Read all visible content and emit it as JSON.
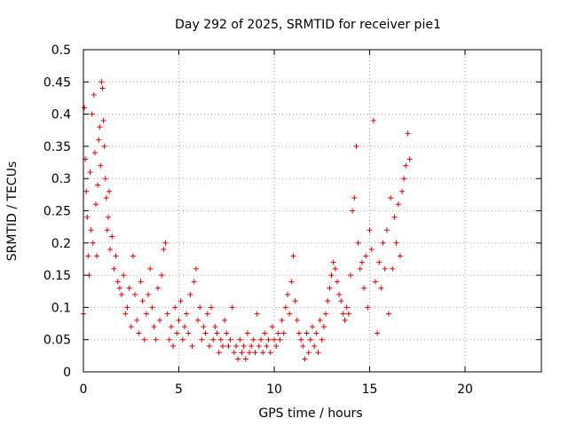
{
  "chart_data": {
    "type": "scatter",
    "title": "Day 292 of 2025, SRMTID for receiver pie1",
    "xlabel": "GPS time / hours",
    "ylabel": "SRMTID / TECUs",
    "xlim": [
      0,
      24
    ],
    "ylim": [
      0,
      0.5
    ],
    "x_ticks": [
      0,
      5,
      10,
      15,
      20
    ],
    "y_ticks": [
      0,
      0.05,
      0.1,
      0.15,
      0.2,
      0.25,
      0.3,
      0.35,
      0.4,
      0.45,
      0.5
    ],
    "x_tick_labels": [
      "0",
      "5",
      "10",
      "15",
      "20"
    ],
    "y_tick_labels": [
      "0",
      "0.05",
      "0.1",
      "0.15",
      "0.2",
      "0.25",
      "0.3",
      "0.35",
      "0.4",
      "0.45",
      "0.5"
    ],
    "grid": true,
    "marker": "+",
    "color": "#e00000",
    "series": [
      {
        "name": "SRMTID",
        "points": [
          [
            0.0,
            0.09
          ],
          [
            0.05,
            0.41
          ],
          [
            0.1,
            0.33
          ],
          [
            0.15,
            0.28
          ],
          [
            0.2,
            0.24
          ],
          [
            0.25,
            0.18
          ],
          [
            0.3,
            0.15
          ],
          [
            0.35,
            0.31
          ],
          [
            0.4,
            0.22
          ],
          [
            0.45,
            0.4
          ],
          [
            0.5,
            0.2
          ],
          [
            0.55,
            0.43
          ],
          [
            0.6,
            0.34
          ],
          [
            0.65,
            0.26
          ],
          [
            0.7,
            0.18
          ],
          [
            0.75,
            0.29
          ],
          [
            0.8,
            0.36
          ],
          [
            0.85,
            0.38
          ],
          [
            0.9,
            0.32
          ],
          [
            0.95,
            0.45
          ],
          [
            1.0,
            0.44
          ],
          [
            1.05,
            0.39
          ],
          [
            1.1,
            0.35
          ],
          [
            1.15,
            0.3
          ],
          [
            1.2,
            0.27
          ],
          [
            1.25,
            0.22
          ],
          [
            1.3,
            0.24
          ],
          [
            1.35,
            0.28
          ],
          [
            1.4,
            0.19
          ],
          [
            1.5,
            0.21
          ],
          [
            1.6,
            0.16
          ],
          [
            1.7,
            0.18
          ],
          [
            1.8,
            0.14
          ],
          [
            1.9,
            0.13
          ],
          [
            2.0,
            0.12
          ],
          [
            2.1,
            0.15
          ],
          [
            2.2,
            0.09
          ],
          [
            2.3,
            0.1
          ],
          [
            2.4,
            0.13
          ],
          [
            2.5,
            0.07
          ],
          [
            2.6,
            0.18
          ],
          [
            2.7,
            0.12
          ],
          [
            2.8,
            0.08
          ],
          [
            2.9,
            0.06
          ],
          [
            3.0,
            0.14
          ],
          [
            3.1,
            0.11
          ],
          [
            3.2,
            0.05
          ],
          [
            3.3,
            0.09
          ],
          [
            3.4,
            0.12
          ],
          [
            3.5,
            0.16
          ],
          [
            3.6,
            0.1
          ],
          [
            3.7,
            0.07
          ],
          [
            3.8,
            0.05
          ],
          [
            3.9,
            0.13
          ],
          [
            4.0,
            0.08
          ],
          [
            4.1,
            0.15
          ],
          [
            4.2,
            0.19
          ],
          [
            4.3,
            0.2
          ],
          [
            4.4,
            0.09
          ],
          [
            4.5,
            0.05
          ],
          [
            4.6,
            0.07
          ],
          [
            4.7,
            0.04
          ],
          [
            4.8,
            0.1
          ],
          [
            4.9,
            0.06
          ],
          [
            5.0,
            0.08
          ],
          [
            5.1,
            0.11
          ],
          [
            5.2,
            0.05
          ],
          [
            5.3,
            0.07
          ],
          [
            5.4,
            0.09
          ],
          [
            5.5,
            0.06
          ],
          [
            5.6,
            0.12
          ],
          [
            5.7,
            0.04
          ],
          [
            5.8,
            0.14
          ],
          [
            5.9,
            0.16
          ],
          [
            6.0,
            0.08
          ],
          [
            6.1,
            0.1
          ],
          [
            6.2,
            0.05
          ],
          [
            6.3,
            0.07
          ],
          [
            6.4,
            0.06
          ],
          [
            6.5,
            0.09
          ],
          [
            6.6,
            0.04
          ],
          [
            6.7,
            0.1
          ],
          [
            6.8,
            0.05
          ],
          [
            6.9,
            0.07
          ],
          [
            7.0,
            0.06
          ],
          [
            7.1,
            0.03
          ],
          [
            7.2,
            0.05
          ],
          [
            7.3,
            0.04
          ],
          [
            7.4,
            0.08
          ],
          [
            7.5,
            0.06
          ],
          [
            7.6,
            0.04
          ],
          [
            7.7,
            0.05
          ],
          [
            7.8,
            0.1
          ],
          [
            7.9,
            0.03
          ],
          [
            8.0,
            0.04
          ],
          [
            8.1,
            0.02
          ],
          [
            8.2,
            0.05
          ],
          [
            8.3,
            0.03
          ],
          [
            8.4,
            0.04
          ],
          [
            8.5,
            0.02
          ],
          [
            8.6,
            0.06
          ],
          [
            8.7,
            0.03
          ],
          [
            8.8,
            0.04
          ],
          [
            8.9,
            0.05
          ],
          [
            9.0,
            0.03
          ],
          [
            9.1,
            0.09
          ],
          [
            9.2,
            0.04
          ],
          [
            9.3,
            0.05
          ],
          [
            9.4,
            0.03
          ],
          [
            9.5,
            0.06
          ],
          [
            9.6,
            0.04
          ],
          [
            9.7,
            0.05
          ],
          [
            9.8,
            0.03
          ],
          [
            9.9,
            0.07
          ],
          [
            10.0,
            0.05
          ],
          [
            10.1,
            0.04
          ],
          [
            10.2,
            0.06
          ],
          [
            10.3,
            0.05
          ],
          [
            10.4,
            0.08
          ],
          [
            10.5,
            0.06
          ],
          [
            10.6,
            0.1
          ],
          [
            10.7,
            0.12
          ],
          [
            10.8,
            0.09
          ],
          [
            10.9,
            0.14
          ],
          [
            11.0,
            0.18
          ],
          [
            11.1,
            0.11
          ],
          [
            11.2,
            0.08
          ],
          [
            11.3,
            0.06
          ],
          [
            11.4,
            0.05
          ],
          [
            11.5,
            0.04
          ],
          [
            11.6,
            0.02
          ],
          [
            11.7,
            0.06
          ],
          [
            11.8,
            0.03
          ],
          [
            11.9,
            0.05
          ],
          [
            12.0,
            0.07
          ],
          [
            12.1,
            0.04
          ],
          [
            12.2,
            0.06
          ],
          [
            12.3,
            0.03
          ],
          [
            12.4,
            0.08
          ],
          [
            12.5,
            0.05
          ],
          [
            12.6,
            0.07
          ],
          [
            12.7,
            0.09
          ],
          [
            12.8,
            0.11
          ],
          [
            12.9,
            0.13
          ],
          [
            13.0,
            0.15
          ],
          [
            13.1,
            0.17
          ],
          [
            13.2,
            0.16
          ],
          [
            13.3,
            0.14
          ],
          [
            13.4,
            0.12
          ],
          [
            13.5,
            0.11
          ],
          [
            13.6,
            0.09
          ],
          [
            13.7,
            0.08
          ],
          [
            13.8,
            0.1
          ],
          [
            13.9,
            0.09
          ],
          [
            14.0,
            0.15
          ],
          [
            14.1,
            0.25
          ],
          [
            14.2,
            0.27
          ],
          [
            14.3,
            0.35
          ],
          [
            14.4,
            0.2
          ],
          [
            14.5,
            0.16
          ],
          [
            14.6,
            0.17
          ],
          [
            14.7,
            0.13
          ],
          [
            14.8,
            0.18
          ],
          [
            14.9,
            0.1
          ],
          [
            15.0,
            0.22
          ],
          [
            15.1,
            0.19
          ],
          [
            15.2,
            0.39
          ],
          [
            15.3,
            0.14
          ],
          [
            15.4,
            0.06
          ],
          [
            15.5,
            0.17
          ],
          [
            15.6,
            0.13
          ],
          [
            15.7,
            0.2
          ],
          [
            15.8,
            0.16
          ],
          [
            15.9,
            0.22
          ],
          [
            16.0,
            0.09
          ],
          [
            16.1,
            0.27
          ],
          [
            16.2,
            0.16
          ],
          [
            16.3,
            0.24
          ],
          [
            16.4,
            0.2
          ],
          [
            16.5,
            0.26
          ],
          [
            16.6,
            0.18
          ],
          [
            16.7,
            0.28
          ],
          [
            16.8,
            0.3
          ],
          [
            16.9,
            0.32
          ],
          [
            17.0,
            0.37
          ],
          [
            17.1,
            0.33
          ]
        ]
      }
    ]
  }
}
